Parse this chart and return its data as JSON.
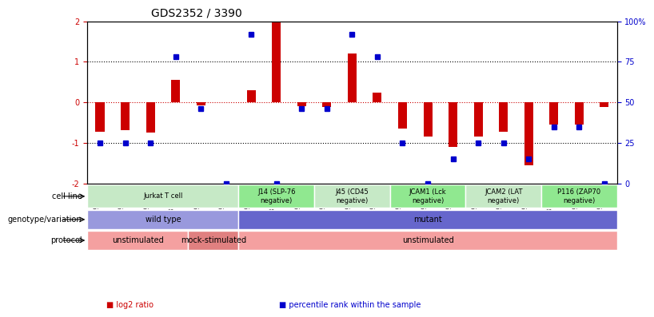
{
  "title": "GDS2352 / 3390",
  "samples": [
    "GSM89762",
    "GSM89765",
    "GSM89767",
    "GSM89759",
    "GSM89760",
    "GSM89764",
    "GSM89753",
    "GSM89755",
    "GSM89771",
    "GSM89756",
    "GSM89757",
    "GSM89758",
    "GSM89761",
    "GSM89763",
    "GSM89773",
    "GSM89766",
    "GSM89768",
    "GSM89770",
    "GSM89754",
    "GSM89769",
    "GSM89772"
  ],
  "log2_ratio": [
    -0.72,
    -0.68,
    -0.75,
    0.55,
    -0.08,
    0.0,
    0.3,
    2.0,
    -0.1,
    -0.12,
    1.2,
    0.25,
    -0.65,
    -0.85,
    -1.1,
    -0.85,
    -0.72,
    -1.55,
    -0.55,
    -0.55,
    -0.12
  ],
  "pct_rank": [
    25,
    25,
    25,
    78,
    46,
    0,
    92,
    0,
    46,
    46,
    92,
    78,
    25,
    0,
    15,
    25,
    25,
    15,
    35,
    35,
    0
  ],
  "bar_color": "#cc0000",
  "dot_color": "#0000cc",
  "ylim_left": [
    -2,
    2
  ],
  "ylim_right": [
    0,
    100
  ],
  "hline_y": [
    0,
    1,
    -1
  ],
  "hline_colors": [
    "#cc0000",
    "#000000",
    "#000000"
  ],
  "hline_styles": [
    "dotted",
    "dotted",
    "dotted"
  ],
  "cell_line_groups": [
    {
      "label": "Jurkat T cell",
      "start": 0,
      "end": 6,
      "color": "#c6e9c6"
    },
    {
      "label": "J14 (SLP-76\nnegative)",
      "start": 6,
      "end": 9,
      "color": "#90e890"
    },
    {
      "label": "J45 (CD45\nnegative)",
      "start": 9,
      "end": 12,
      "color": "#c6e9c6"
    },
    {
      "label": "JCAM1 (Lck\nnegative)",
      "start": 12,
      "end": 15,
      "color": "#90e890"
    },
    {
      "label": "JCAM2 (LAT\nnegative)",
      "start": 15,
      "end": 18,
      "color": "#c6e9c6"
    },
    {
      "label": "P116 (ZAP70\nnegative)",
      "start": 18,
      "end": 21,
      "color": "#90e890"
    }
  ],
  "genotype_groups": [
    {
      "label": "wild type",
      "start": 0,
      "end": 6,
      "color": "#9999dd"
    },
    {
      "label": "mutant",
      "start": 6,
      "end": 21,
      "color": "#6666cc"
    }
  ],
  "protocol_groups": [
    {
      "label": "unstimulated",
      "start": 0,
      "end": 4,
      "color": "#f4a0a0"
    },
    {
      "label": "mock-stimulated",
      "start": 4,
      "end": 6,
      "color": "#e08080"
    },
    {
      "label": "unstimulated",
      "start": 6,
      "end": 21,
      "color": "#f4a0a0"
    }
  ],
  "row_labels": [
    "cell line",
    "genotype/variation",
    "protocol"
  ],
  "legend": [
    {
      "label": "log2 ratio",
      "color": "#cc0000"
    },
    {
      "label": "percentile rank within the sample",
      "color": "#0000cc"
    }
  ]
}
